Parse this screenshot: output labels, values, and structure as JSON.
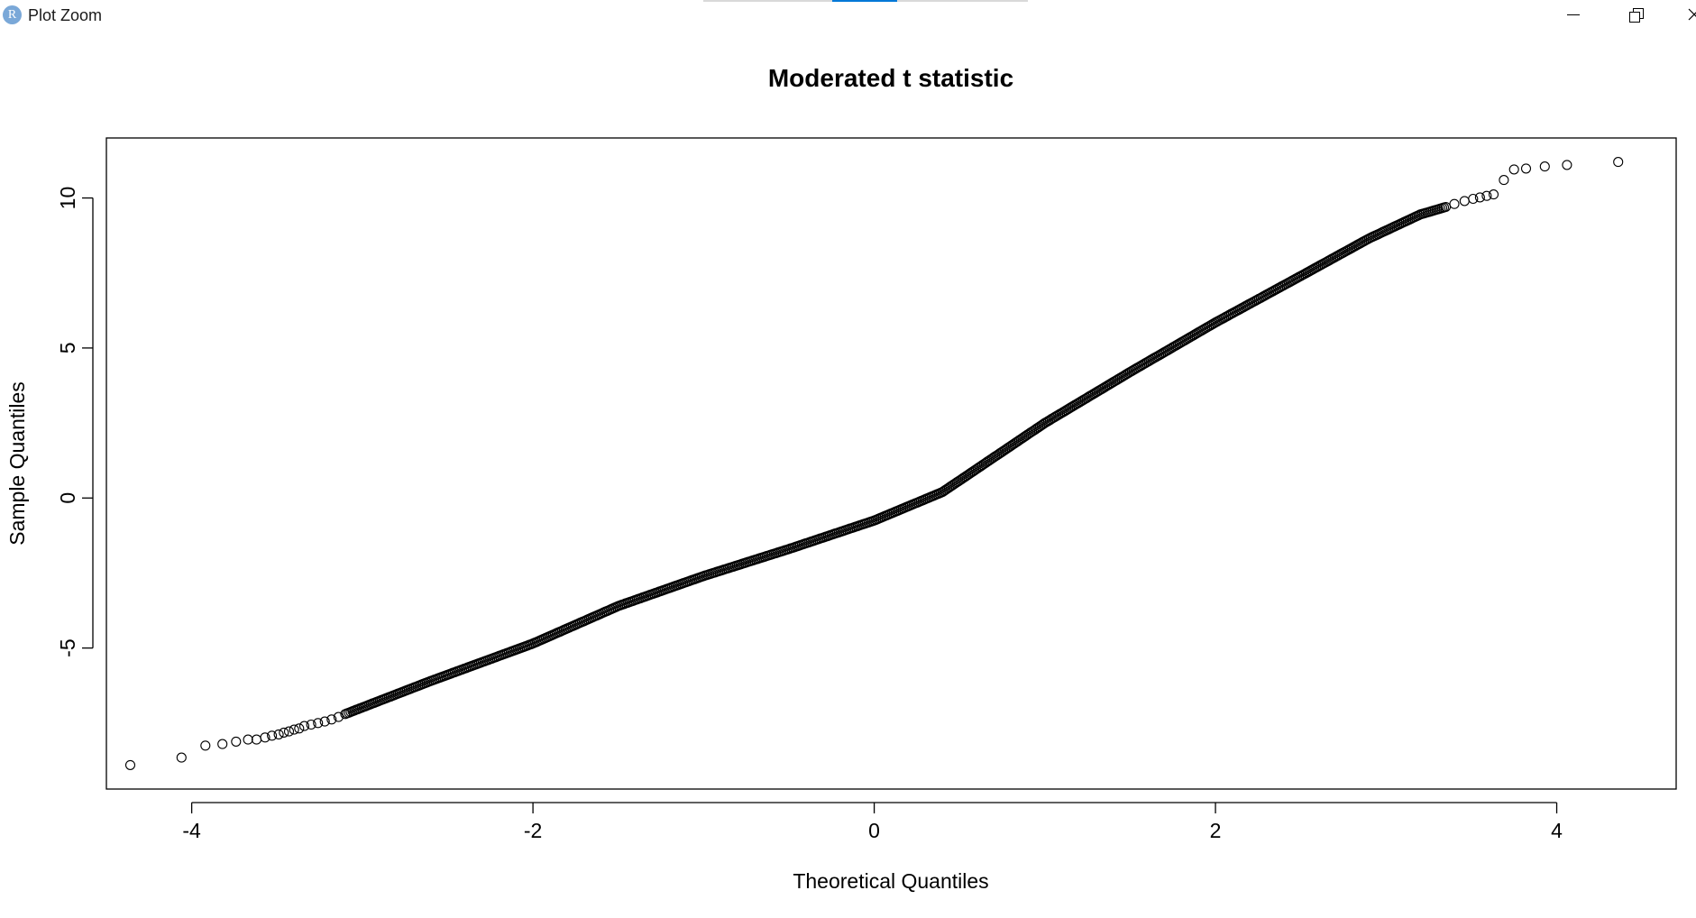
{
  "window": {
    "title": "Plot Zoom",
    "app_icon_letter": "R",
    "icon_names": [
      "minimize-icon",
      "restore-icon",
      "close-icon"
    ]
  },
  "chart_data": {
    "type": "scatter",
    "subtype": "normal-qq",
    "title": "Moderated t statistic",
    "xlabel": "Theoretical Quantiles",
    "ylabel": "Sample Quantiles",
    "xlim": [
      -4.5,
      4.7
    ],
    "ylim": [
      -9.7,
      12.0
    ],
    "xticks": [
      -4,
      -2,
      0,
      2,
      4
    ],
    "yticks": [
      -5,
      0,
      5,
      10
    ],
    "xtick_labels": [
      "-4",
      "-2",
      "0",
      "2",
      "4"
    ],
    "ytick_labels": [
      "-5",
      "0",
      "5",
      "10"
    ],
    "grid": false,
    "legend": "none",
    "marker": "open-circle",
    "color": "#000000",
    "curve": [
      [
        -3.1,
        -7.2
      ],
      [
        -2.6,
        -6.1
      ],
      [
        -2.0,
        -4.85
      ],
      [
        -1.5,
        -3.6
      ],
      [
        -1.0,
        -2.6
      ],
      [
        -0.5,
        -1.7
      ],
      [
        0.0,
        -0.75
      ],
      [
        0.4,
        0.2
      ],
      [
        0.7,
        1.35
      ],
      [
        1.0,
        2.5
      ],
      [
        1.5,
        4.2
      ],
      [
        2.0,
        5.85
      ],
      [
        2.5,
        7.4
      ],
      [
        2.9,
        8.65
      ],
      [
        3.2,
        9.45
      ],
      [
        3.35,
        9.7
      ]
    ],
    "outlier_points": [
      [
        -4.36,
        -8.9
      ],
      [
        -4.06,
        -8.65
      ],
      [
        -3.92,
        -8.25
      ],
      [
        -3.82,
        -8.2
      ],
      [
        -3.74,
        -8.12
      ],
      [
        -3.67,
        -8.05
      ],
      [
        -3.62,
        -8.05
      ],
      [
        -3.57,
        -7.98
      ],
      [
        -3.53,
        -7.92
      ],
      [
        -3.49,
        -7.88
      ],
      [
        -3.46,
        -7.82
      ],
      [
        -3.43,
        -7.78
      ],
      [
        -3.4,
        -7.72
      ],
      [
        -3.37,
        -7.68
      ],
      [
        -3.34,
        -7.6
      ],
      [
        -3.3,
        -7.55
      ],
      [
        -3.26,
        -7.5
      ],
      [
        -3.22,
        -7.45
      ],
      [
        -3.18,
        -7.38
      ],
      [
        -3.14,
        -7.3
      ],
      [
        3.4,
        9.8
      ],
      [
        3.46,
        9.9
      ],
      [
        3.51,
        9.97
      ],
      [
        3.55,
        10.02
      ],
      [
        3.59,
        10.07
      ],
      [
        3.63,
        10.12
      ],
      [
        3.69,
        10.6
      ],
      [
        3.75,
        10.95
      ],
      [
        3.82,
        10.98
      ],
      [
        3.93,
        11.05
      ],
      [
        4.06,
        11.1
      ],
      [
        4.36,
        11.2
      ]
    ]
  }
}
